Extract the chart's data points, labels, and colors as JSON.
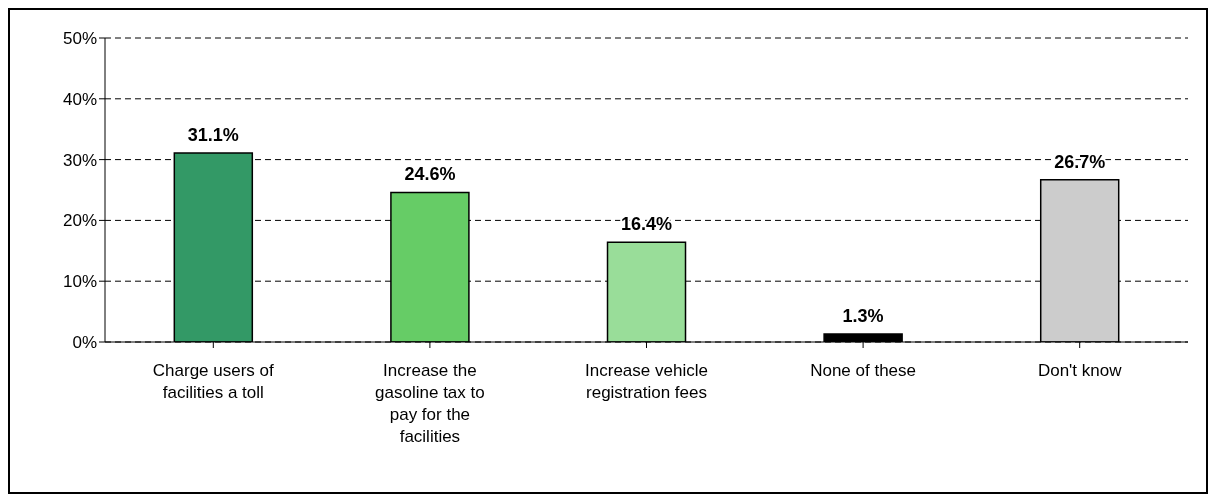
{
  "chart_data": {
    "type": "bar",
    "categories": [
      "Charge users of facilities a toll",
      "Increase the gasoline tax to pay for the facilities",
      "Increase vehicle registration fees",
      "None of these",
      "Don't know"
    ],
    "values": [
      31.1,
      24.6,
      16.4,
      1.3,
      26.7
    ],
    "colors": [
      "#339966",
      "#66cc66",
      "#99dd99",
      "#000000",
      "#cccccc"
    ],
    "value_labels": [
      "31.1%",
      "24.6%",
      "16.4%",
      "1.3%",
      "26.7%"
    ],
    "ylim": [
      0,
      50
    ],
    "yticks": [
      {
        "value": 0,
        "label": "0%"
      },
      {
        "value": 10,
        "label": "10%"
      },
      {
        "value": 20,
        "label": "20%"
      },
      {
        "value": 30,
        "label": "30%"
      },
      {
        "value": 40,
        "label": "40%"
      },
      {
        "value": 50,
        "label": "50%"
      }
    ],
    "grid": "y"
  }
}
